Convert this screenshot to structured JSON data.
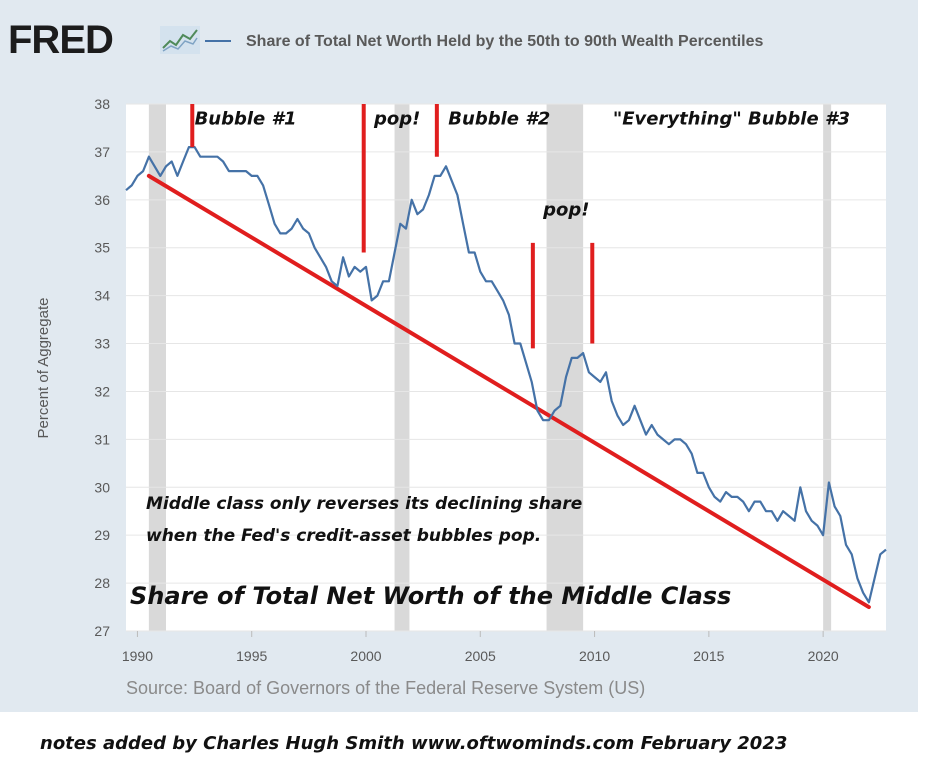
{
  "header": {
    "logo_text": "FRED",
    "logo_icon": "line-graph-icon",
    "legend_label": "Share of Total Net Worth Held by the 50th to 90th Wealth Percentiles"
  },
  "source_text": "Source: Board of Governors of the Federal Reserve System (US)",
  "credits_text": "notes added by Charles Hugh Smith   www.oftwominds.com   February 2023",
  "colors": {
    "series": "#4572a7",
    "annotation": "#e01e1e",
    "recession": "#d9d9d9",
    "panel": "#e1e9f0",
    "plot": "#ffffff"
  },
  "chart_data": {
    "type": "line",
    "ylabel": "Percent of Aggregate",
    "xlabel": "",
    "ylim": [
      27,
      38
    ],
    "xlim": [
      1989.5,
      2022.75
    ],
    "y_ticks": [
      "27",
      "28",
      "29",
      "30",
      "31",
      "32",
      "33",
      "34",
      "35",
      "36",
      "37",
      "38"
    ],
    "x_ticks": [
      "1990",
      "1995",
      "2000",
      "2005",
      "2010",
      "2015",
      "2020"
    ],
    "grid": "horizontal",
    "recessions": [
      [
        1990.5,
        1991.25
      ],
      [
        2001.25,
        2001.9
      ],
      [
        2007.9,
        2009.5
      ],
      [
        2020.0,
        2020.35
      ]
    ],
    "series": [
      {
        "name": "Share of Total Net Worth Held by the 50th to 90th Wealth Percentiles",
        "points": [
          [
            1989.5,
            36.2
          ],
          [
            1989.75,
            36.3
          ],
          [
            1990.0,
            36.5
          ],
          [
            1990.25,
            36.6
          ],
          [
            1990.5,
            36.9
          ],
          [
            1990.75,
            36.7
          ],
          [
            1991.0,
            36.5
          ],
          [
            1991.25,
            36.7
          ],
          [
            1991.5,
            36.8
          ],
          [
            1991.75,
            36.5
          ],
          [
            1992.0,
            36.8
          ],
          [
            1992.25,
            37.1
          ],
          [
            1992.5,
            37.1
          ],
          [
            1992.75,
            36.9
          ],
          [
            1993.0,
            36.9
          ],
          [
            1993.25,
            36.9
          ],
          [
            1993.5,
            36.9
          ],
          [
            1993.75,
            36.8
          ],
          [
            1994.0,
            36.6
          ],
          [
            1994.25,
            36.6
          ],
          [
            1994.5,
            36.6
          ],
          [
            1994.75,
            36.6
          ],
          [
            1995.0,
            36.5
          ],
          [
            1995.25,
            36.5
          ],
          [
            1995.5,
            36.3
          ],
          [
            1995.75,
            35.9
          ],
          [
            1996.0,
            35.5
          ],
          [
            1996.25,
            35.3
          ],
          [
            1996.5,
            35.3
          ],
          [
            1996.75,
            35.4
          ],
          [
            1997.0,
            35.6
          ],
          [
            1997.25,
            35.4
          ],
          [
            1997.5,
            35.3
          ],
          [
            1997.75,
            35.0
          ],
          [
            1998.0,
            34.8
          ],
          [
            1998.25,
            34.6
          ],
          [
            1998.5,
            34.3
          ],
          [
            1998.75,
            34.2
          ],
          [
            1999.0,
            34.8
          ],
          [
            1999.25,
            34.4
          ],
          [
            1999.5,
            34.6
          ],
          [
            1999.75,
            34.5
          ],
          [
            2000.0,
            34.6
          ],
          [
            2000.25,
            33.9
          ],
          [
            2000.5,
            34.0
          ],
          [
            2000.75,
            34.3
          ],
          [
            2001.0,
            34.3
          ],
          [
            2001.25,
            34.9
          ],
          [
            2001.5,
            35.5
          ],
          [
            2001.75,
            35.4
          ],
          [
            2002.0,
            36.0
          ],
          [
            2002.25,
            35.7
          ],
          [
            2002.5,
            35.8
          ],
          [
            2002.75,
            36.1
          ],
          [
            2003.0,
            36.5
          ],
          [
            2003.25,
            36.5
          ],
          [
            2003.5,
            36.7
          ],
          [
            2003.75,
            36.4
          ],
          [
            2004.0,
            36.1
          ],
          [
            2004.25,
            35.5
          ],
          [
            2004.5,
            34.9
          ],
          [
            2004.75,
            34.9
          ],
          [
            2005.0,
            34.5
          ],
          [
            2005.25,
            34.3
          ],
          [
            2005.5,
            34.3
          ],
          [
            2005.75,
            34.1
          ],
          [
            2006.0,
            33.9
          ],
          [
            2006.25,
            33.6
          ],
          [
            2006.5,
            33.0
          ],
          [
            2006.75,
            33.0
          ],
          [
            2007.0,
            32.6
          ],
          [
            2007.25,
            32.2
          ],
          [
            2007.5,
            31.6
          ],
          [
            2007.75,
            31.4
          ],
          [
            2008.0,
            31.4
          ],
          [
            2008.25,
            31.6
          ],
          [
            2008.5,
            31.7
          ],
          [
            2008.75,
            32.3
          ],
          [
            2009.0,
            32.7
          ],
          [
            2009.25,
            32.7
          ],
          [
            2009.5,
            32.8
          ],
          [
            2009.75,
            32.4
          ],
          [
            2010.0,
            32.3
          ],
          [
            2010.25,
            32.2
          ],
          [
            2010.5,
            32.4
          ],
          [
            2010.75,
            31.8
          ],
          [
            2011.0,
            31.5
          ],
          [
            2011.25,
            31.3
          ],
          [
            2011.5,
            31.4
          ],
          [
            2011.75,
            31.7
          ],
          [
            2012.0,
            31.4
          ],
          [
            2012.25,
            31.1
          ],
          [
            2012.5,
            31.3
          ],
          [
            2012.75,
            31.1
          ],
          [
            2013.0,
            31.0
          ],
          [
            2013.25,
            30.9
          ],
          [
            2013.5,
            31.0
          ],
          [
            2013.75,
            31.0
          ],
          [
            2014.0,
            30.9
          ],
          [
            2014.25,
            30.7
          ],
          [
            2014.5,
            30.3
          ],
          [
            2014.75,
            30.3
          ],
          [
            2015.0,
            30.0
          ],
          [
            2015.25,
            29.8
          ],
          [
            2015.5,
            29.7
          ],
          [
            2015.75,
            29.9
          ],
          [
            2016.0,
            29.8
          ],
          [
            2016.25,
            29.8
          ],
          [
            2016.5,
            29.7
          ],
          [
            2016.75,
            29.5
          ],
          [
            2017.0,
            29.7
          ],
          [
            2017.25,
            29.7
          ],
          [
            2017.5,
            29.5
          ],
          [
            2017.75,
            29.5
          ],
          [
            2018.0,
            29.3
          ],
          [
            2018.25,
            29.5
          ],
          [
            2018.5,
            29.4
          ],
          [
            2018.75,
            29.3
          ],
          [
            2019.0,
            30.0
          ],
          [
            2019.25,
            29.5
          ],
          [
            2019.5,
            29.3
          ],
          [
            2019.75,
            29.2
          ],
          [
            2020.0,
            29.0
          ],
          [
            2020.25,
            30.1
          ],
          [
            2020.5,
            29.6
          ],
          [
            2020.75,
            29.4
          ],
          [
            2021.0,
            28.8
          ],
          [
            2021.25,
            28.6
          ],
          [
            2021.5,
            28.1
          ],
          [
            2021.75,
            27.8
          ],
          [
            2022.0,
            27.6
          ],
          [
            2022.25,
            28.1
          ],
          [
            2022.5,
            28.6
          ],
          [
            2022.75,
            28.7
          ]
        ]
      }
    ],
    "trend_line": [
      [
        1990.5,
        36.5
      ],
      [
        2022.0,
        27.5
      ]
    ],
    "annotations": [
      {
        "text": "Bubble #1",
        "x": 1992.5,
        "y": 37.7
      },
      {
        "text": "pop!",
        "x": 2000.35,
        "y": 37.7
      },
      {
        "text": "Bubble #2",
        "x": 2003.6,
        "y": 37.7
      },
      {
        "text": "\"Everything\" Bubble #3",
        "x": 2010.8,
        "y": 37.7
      },
      {
        "text": "pop!",
        "x": 2007.75,
        "y": 35.8
      }
    ],
    "marker_lines": [
      {
        "x": 1992.4,
        "y1": 37.1,
        "y2": 38.0
      },
      {
        "x": 1999.9,
        "y1": 34.9,
        "y2": 38.0
      },
      {
        "x": 2003.1,
        "y1": 36.9,
        "y2": 38.0
      },
      {
        "x": 2007.3,
        "y1": 32.9,
        "y2": 35.1
      },
      {
        "x": 2009.9,
        "y1": 33.0,
        "y2": 35.1
      }
    ],
    "notes": {
      "line1": "Middle class only reverses its declining share",
      "line2": "when the Fed's credit-asset bubbles pop.",
      "big_title": "Share of Total Net Worth of the Middle Class"
    }
  }
}
